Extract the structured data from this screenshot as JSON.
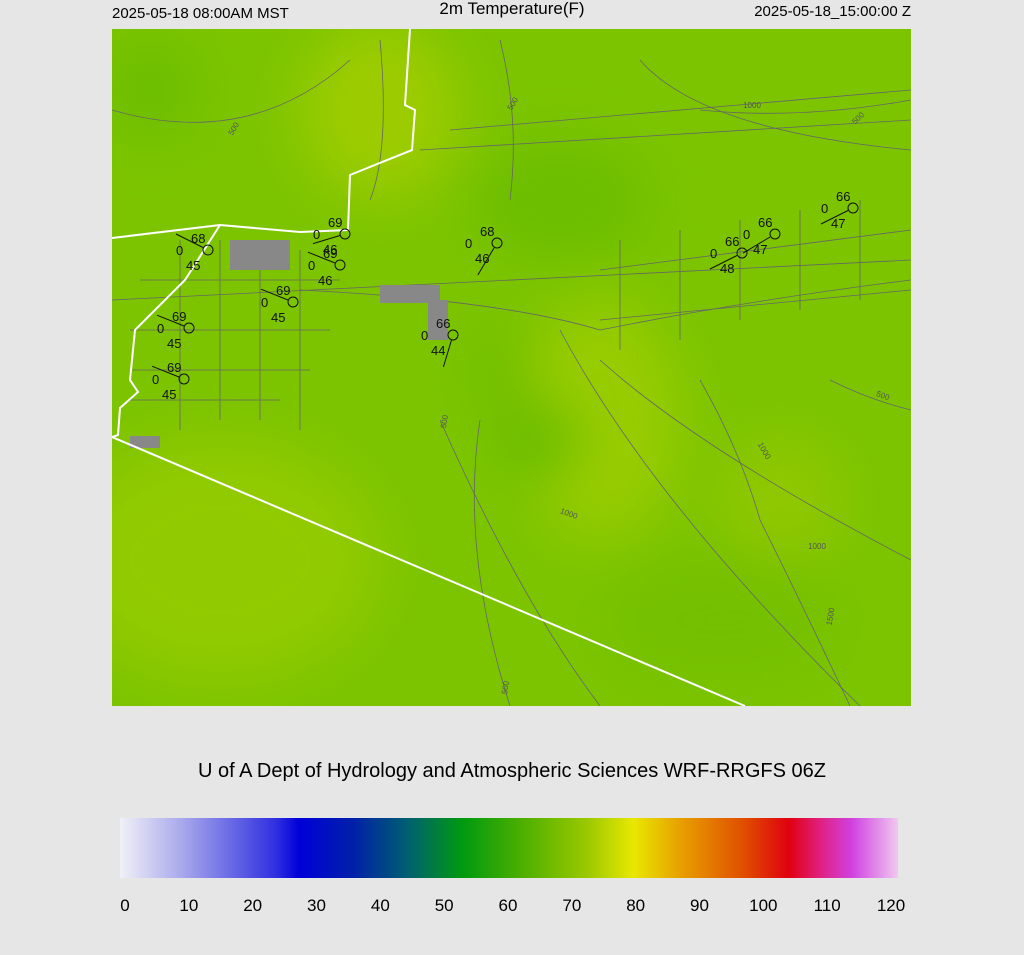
{
  "header": {
    "left": "2025-05-18 08:00AM MST",
    "title": "2m Temperature(F)",
    "right": "2025-05-18_15:00:00 Z"
  },
  "credit": "U of A Dept of Hydrology and Atmospheric Sciences WRF-RRGFS 06Z",
  "stations": [
    {
      "temperature": 68,
      "center": 0,
      "dewpoint": 45
    },
    {
      "temperature": 69,
      "center": 0,
      "dewpoint": 46
    },
    {
      "temperature": 69,
      "center": 0,
      "dewpoint": 46
    },
    {
      "temperature": 69,
      "center": 0,
      "dewpoint": 45
    },
    {
      "temperature": 69,
      "center": 0,
      "dewpoint": 45
    },
    {
      "temperature": 69,
      "center": 0,
      "dewpoint": 45
    },
    {
      "temperature": 68,
      "center": 0,
      "dewpoint": 46
    },
    {
      "temperature": 66,
      "center": 0,
      "dewpoint": 44
    },
    {
      "temperature": 66,
      "center": 0,
      "dewpoint": 48
    },
    {
      "temperature": 66,
      "center": 0,
      "dewpoint": 47
    },
    {
      "temperature": 66,
      "center": 0,
      "dewpoint": 47
    }
  ],
  "contour_labels": [
    500,
    500,
    1000,
    500,
    500,
    1000,
    500,
    1000,
    1000,
    1500,
    500
  ],
  "colorbar": {
    "range": [
      0,
      120
    ],
    "ticks": [
      0,
      10,
      20,
      30,
      40,
      50,
      60,
      70,
      80,
      90,
      100,
      110,
      120
    ]
  }
}
